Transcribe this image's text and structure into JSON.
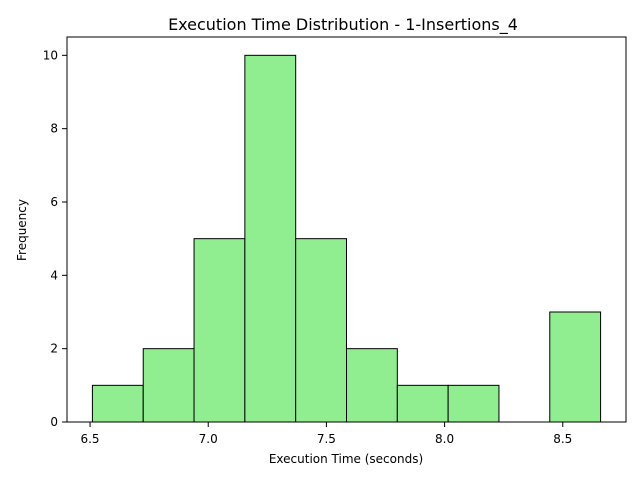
{
  "chart_data": {
    "type": "histogram",
    "title": "Execution Time Distribution - 1-Insertions_4",
    "xlabel": "Execution Time (seconds)",
    "ylabel": "Frequency",
    "bin_edges": [
      6.51,
      6.725,
      6.94,
      7.155,
      7.37,
      7.585,
      7.8,
      8.015,
      8.23,
      8.445,
      8.66
    ],
    "values": [
      1,
      2,
      5,
      10,
      5,
      2,
      1,
      1,
      0,
      3
    ],
    "xlim": [
      6.4025,
      8.7675
    ],
    "ylim": [
      0,
      10.5
    ],
    "x_ticks": [
      6.5,
      7.0,
      7.5,
      8.0,
      8.5
    ],
    "x_tick_labels": [
      "6.5",
      "7.0",
      "7.5",
      "8.0",
      "8.5"
    ],
    "y_ticks": [
      0,
      2,
      4,
      6,
      8,
      10
    ],
    "y_tick_labels": [
      "0",
      "2",
      "4",
      "6",
      "8",
      "10"
    ],
    "bar_color": "#90ee90",
    "edge_color": "#000000",
    "grid": false
  }
}
